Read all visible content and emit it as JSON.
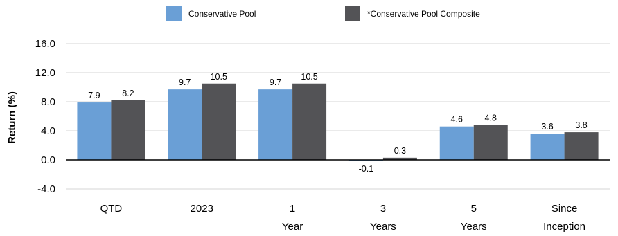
{
  "chart_data": {
    "type": "bar",
    "ylabel": "Return (%)",
    "ylim": [
      -4.0,
      16.0
    ],
    "yticks": [
      "16.0",
      "12.0",
      "8.0",
      "4.0",
      "0.0",
      "-4.0"
    ],
    "ytick_values": [
      16,
      12,
      8,
      4,
      0,
      -4
    ],
    "grid": true,
    "legend_position": "top-center",
    "categories": [
      [
        "QTD"
      ],
      [
        "2023"
      ],
      [
        "1",
        "Year"
      ],
      [
        "3",
        "Years"
      ],
      [
        "5",
        "Years"
      ],
      [
        "Since",
        "Inception"
      ]
    ],
    "series": [
      {
        "name": "Conservative Pool",
        "color": "#6a9fd6",
        "values": [
          7.9,
          9.7,
          9.7,
          -0.1,
          4.6,
          3.6
        ],
        "labels": [
          "7.9",
          "9.7",
          "9.7",
          "-0.1",
          "4.6",
          "3.6"
        ]
      },
      {
        "name": "*Conservative Pool Composite",
        "color": "#535356",
        "values": [
          8.2,
          10.5,
          10.5,
          0.3,
          4.8,
          3.8
        ],
        "labels": [
          "8.2",
          "10.5",
          "10.5",
          "0.3",
          "4.8",
          "3.8"
        ]
      }
    ]
  }
}
